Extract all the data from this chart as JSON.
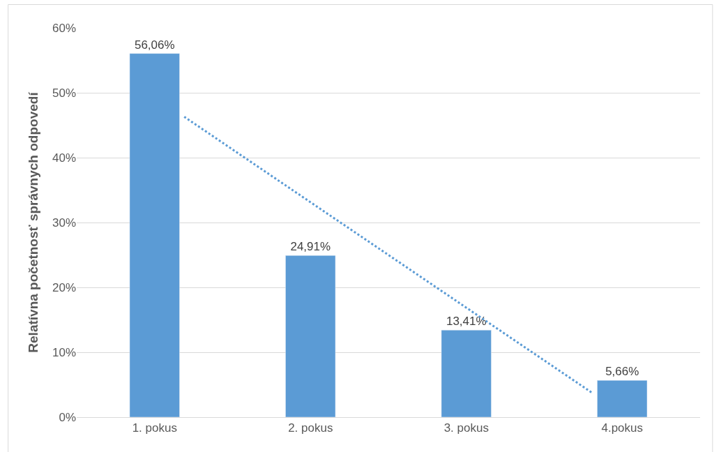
{
  "chart_data": {
    "type": "bar",
    "ylabel": "Relatívna početnosť správnych odpovedí",
    "x": [
      1,
      2,
      3,
      4
    ],
    "xlim": [
      0.5,
      4.5
    ],
    "xticks": [
      {
        "value": 1,
        "label": "1. pokus"
      },
      {
        "value": 2,
        "label": "2. pokus"
      },
      {
        "value": 3,
        "label": "3. pokus"
      },
      {
        "value": 4,
        "label": "4.pokus"
      }
    ],
    "series": [
      {
        "type": "line",
        "color": "#5b9bd5",
        "line_style": "dotted",
        "x": [
          1.19,
          3.81
        ],
        "values": [
          46.3,
          3.7
        ]
      },
      {
        "color": "#5b9bd5",
        "values": [
          56.06,
          24.91,
          13.41,
          5.66
        ],
        "value_labels": [
          "56,06%",
          "24,91%",
          "13,41%",
          "5,66%"
        ]
      }
    ],
    "ylim": [
      0,
      60
    ],
    "yticks": [
      {
        "value": 0,
        "label": "0%"
      },
      {
        "value": 10,
        "label": "10%"
      },
      {
        "value": 20,
        "label": "20%"
      },
      {
        "value": 30,
        "label": "30%"
      },
      {
        "value": 40,
        "label": "40%"
      },
      {
        "value": 50,
        "label": "50%"
      },
      {
        "value": 60,
        "label": "60%"
      }
    ],
    "grid": "y",
    "legend": false
  }
}
